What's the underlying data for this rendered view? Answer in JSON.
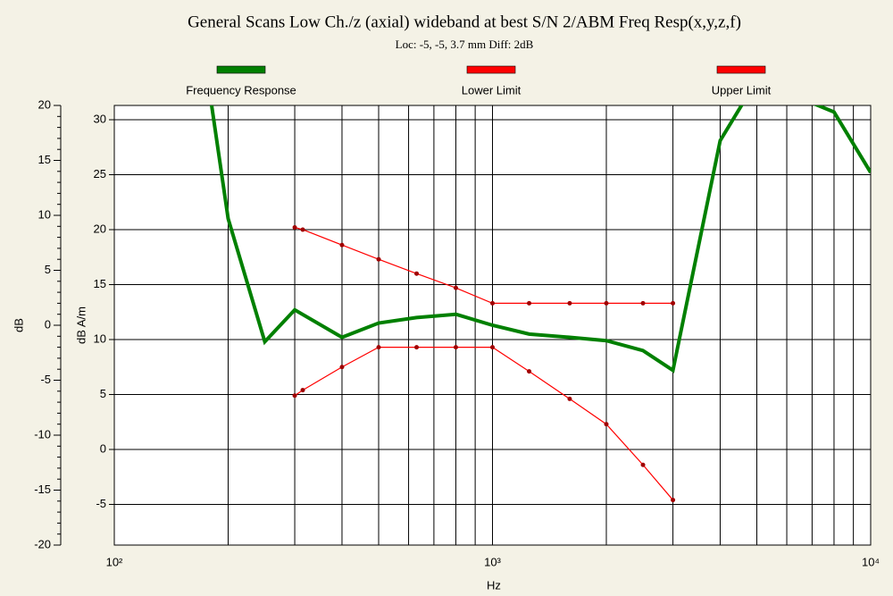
{
  "chart_data": {
    "type": "line",
    "title": "General Scans Low Ch./z (axial) wideband at best S/N 2/ABM Freq Resp(x,y,z,f)",
    "subtitle": "Loc: -5, -5, 3.7 mm Diff: 2dB",
    "xlabel": "Hz",
    "ylabel": "dB",
    "y2label": "dB A/m",
    "xscale": "log",
    "xlim": [
      100,
      10000
    ],
    "xticks": [
      {
        "value": 100,
        "label": "10²"
      },
      {
        "value": 1000,
        "label": "10³"
      },
      {
        "value": 10000,
        "label": "10⁴"
      }
    ],
    "xminor": [
      200,
      300,
      400,
      500,
      600,
      700,
      800,
      900,
      2000,
      3000,
      4000,
      5000,
      6000,
      7000,
      8000,
      9000
    ],
    "ylim": [
      -20,
      20
    ],
    "yticks": [
      -20,
      -15,
      -10,
      -5,
      0,
      5,
      10,
      15,
      20
    ],
    "y2lim": [
      -8.7,
      31.3
    ],
    "y2ticks": [
      -5,
      0,
      5,
      10,
      15,
      20,
      25,
      30
    ],
    "grid": true,
    "legend": "top",
    "series": [
      {
        "name": "Frequency Response",
        "color": "#008000",
        "axis": "y2",
        "x": [
          180,
          200,
          250,
          300,
          400,
          500,
          630,
          800,
          1000,
          1250,
          1600,
          2000,
          2500,
          3000,
          4000,
          5000,
          8000,
          10000
        ],
        "values": [
          31.8,
          21.0,
          9.8,
          12.7,
          10.2,
          11.5,
          12.0,
          12.3,
          11.3,
          10.5,
          10.2,
          9.9,
          9.0,
          7.2,
          28.1,
          33.6,
          30.7,
          25.2
        ]
      },
      {
        "name": "Lower Limit",
        "color": "#ff0000",
        "axis": "y2",
        "x": [
          300,
          315,
          400,
          500,
          630,
          800,
          1000,
          1250,
          1600,
          2000,
          2500,
          3000
        ],
        "values": [
          4.9,
          5.4,
          7.5,
          9.3,
          9.3,
          9.3,
          9.3,
          7.1,
          4.6,
          2.3,
          -1.4,
          -4.6
        ]
      },
      {
        "name": "Upper Limit",
        "color": "#ff0000",
        "axis": "y2",
        "x": [
          300,
          315,
          400,
          500,
          630,
          800,
          1000,
          1250,
          1600,
          2000,
          2500,
          3000
        ],
        "values": [
          20.2,
          20.0,
          18.6,
          17.3,
          16.0,
          14.7,
          13.3,
          13.3,
          13.3,
          13.3,
          13.3,
          13.3
        ]
      }
    ]
  }
}
